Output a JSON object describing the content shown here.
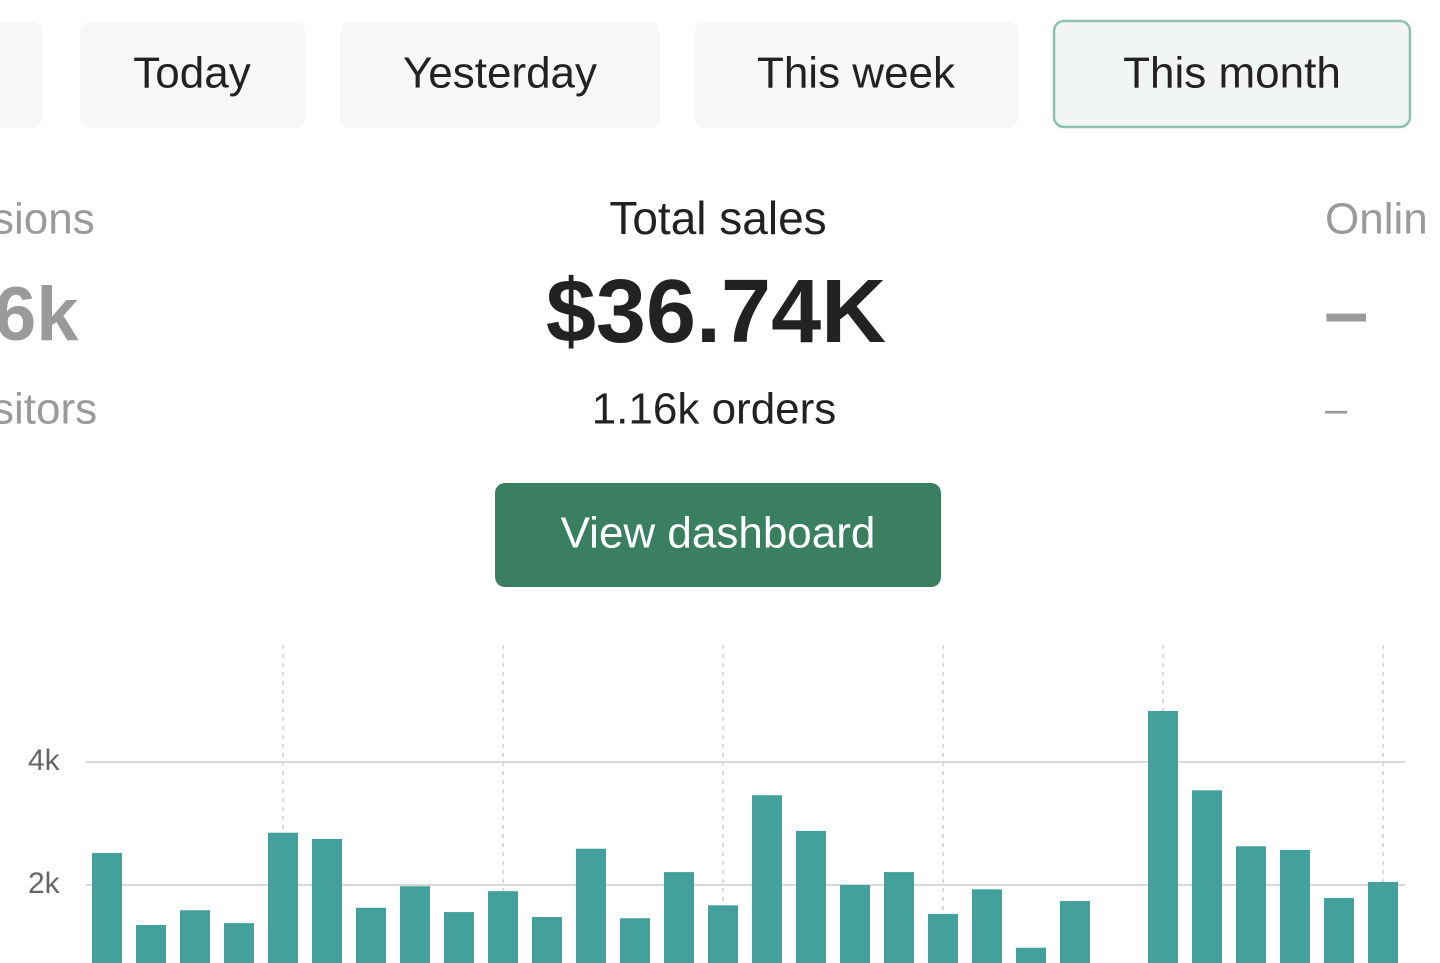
{
  "tabs": [
    "Today",
    "Yesterday",
    "This week",
    "This month"
  ],
  "metrics": [
    {
      "label": "sions",
      "value": "6k",
      "sublabel": "sitors"
    },
    {
      "label": "Total sales",
      "value": "$36.74K",
      "sublabel": "1.16k orders"
    },
    {
      "label": "Onlin",
      "value": "–",
      "sublabel": "–"
    }
  ],
  "button": "View dashboard",
  "chart_data": {
    "type": "bar",
    "categories": [
      null,
      null,
      null,
      null,
      null,
      null,
      null,
      null,
      null,
      null,
      null,
      null,
      null,
      null,
      null,
      null,
      null,
      null,
      null,
      null,
      null,
      null,
      null,
      null,
      null,
      null,
      null,
      null,
      null,
      null
    ],
    "values": [
      2520,
      1350,
      1590,
      1380,
      2850,
      2750,
      1630,
      1980,
      1560,
      1900,
      1480,
      2590,
      1460,
      2210,
      1670,
      3460,
      2880,
      2000,
      2210,
      1530,
      1930,
      980,
      1740,
      0,
      4830,
      3540,
      2630,
      2570,
      1790,
      2050
    ],
    "color": "#44a09d",
    "ylim": [
      0,
      6000
    ],
    "yticks": [
      {
        "value": 2000,
        "label": "2k"
      },
      {
        "value": 4000,
        "label": "4k"
      }
    ],
    "grid": true
  }
}
